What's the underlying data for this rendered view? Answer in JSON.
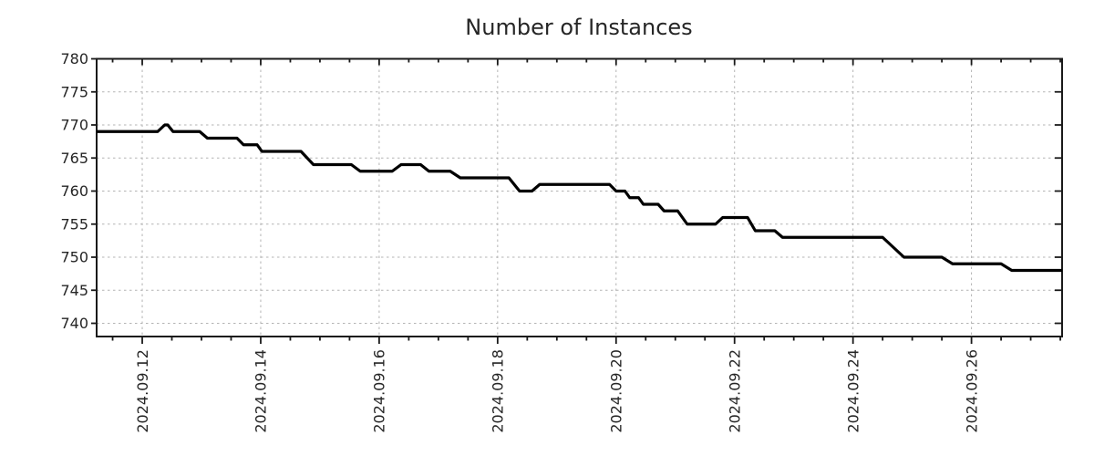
{
  "colors": {
    "line": "#000000",
    "grid": "#b3b3b3",
    "axis": "#1a1a1a",
    "text": "#262626",
    "background": "#ffffff"
  },
  "chart_data": {
    "type": "line",
    "title": "Number of Instances",
    "xlabel": "",
    "ylabel": "",
    "grid": true,
    "legend": "none",
    "x_unit": "days since 2024-09-11 00:00 (date axis)",
    "xlim": [
      0.23,
      16.53
    ],
    "ylim": [
      738.0,
      780.0
    ],
    "y_ticks": [
      740,
      745,
      750,
      755,
      760,
      765,
      770,
      775,
      780
    ],
    "x_ticks": [
      {
        "day": 1,
        "label": "2024.09.12"
      },
      {
        "day": 3,
        "label": "2024.09.14"
      },
      {
        "day": 5,
        "label": "2024.09.16"
      },
      {
        "day": 7,
        "label": "2024.09.18"
      },
      {
        "day": 9,
        "label": "2024.09.20"
      },
      {
        "day": 11,
        "label": "2024.09.22"
      },
      {
        "day": 13,
        "label": "2024.09.24"
      },
      {
        "day": 15,
        "label": "2024.09.26"
      }
    ],
    "x_minor_tick_step": 0.5,
    "series": [
      {
        "name": "instances",
        "points": [
          [
            0.23,
            769
          ],
          [
            1.26,
            769
          ],
          [
            1.38,
            770
          ],
          [
            1.43,
            770
          ],
          [
            1.52,
            769
          ],
          [
            1.97,
            769
          ],
          [
            2.1,
            768
          ],
          [
            2.6,
            768
          ],
          [
            2.71,
            767
          ],
          [
            2.94,
            767
          ],
          [
            3.02,
            766
          ],
          [
            3.68,
            766
          ],
          [
            3.89,
            764
          ],
          [
            4.53,
            764
          ],
          [
            4.68,
            763
          ],
          [
            5.22,
            763
          ],
          [
            5.37,
            764
          ],
          [
            5.7,
            764
          ],
          [
            5.84,
            763
          ],
          [
            6.2,
            763
          ],
          [
            6.37,
            762
          ],
          [
            7.19,
            762
          ],
          [
            7.37,
            760
          ],
          [
            7.58,
            760
          ],
          [
            7.71,
            761
          ],
          [
            8.89,
            761
          ],
          [
            9.0,
            760
          ],
          [
            9.15,
            760
          ],
          [
            9.23,
            759
          ],
          [
            9.38,
            759
          ],
          [
            9.46,
            758
          ],
          [
            9.71,
            758
          ],
          [
            9.81,
            757
          ],
          [
            10.04,
            757
          ],
          [
            10.2,
            755
          ],
          [
            10.68,
            755
          ],
          [
            10.8,
            756
          ],
          [
            11.22,
            756
          ],
          [
            11.35,
            754
          ],
          [
            11.68,
            754
          ],
          [
            11.81,
            753
          ],
          [
            13.5,
            753
          ],
          [
            13.86,
            750
          ],
          [
            14.5,
            750
          ],
          [
            14.68,
            749
          ],
          [
            15.5,
            749
          ],
          [
            15.68,
            748
          ],
          [
            16.53,
            748
          ]
        ]
      }
    ]
  }
}
